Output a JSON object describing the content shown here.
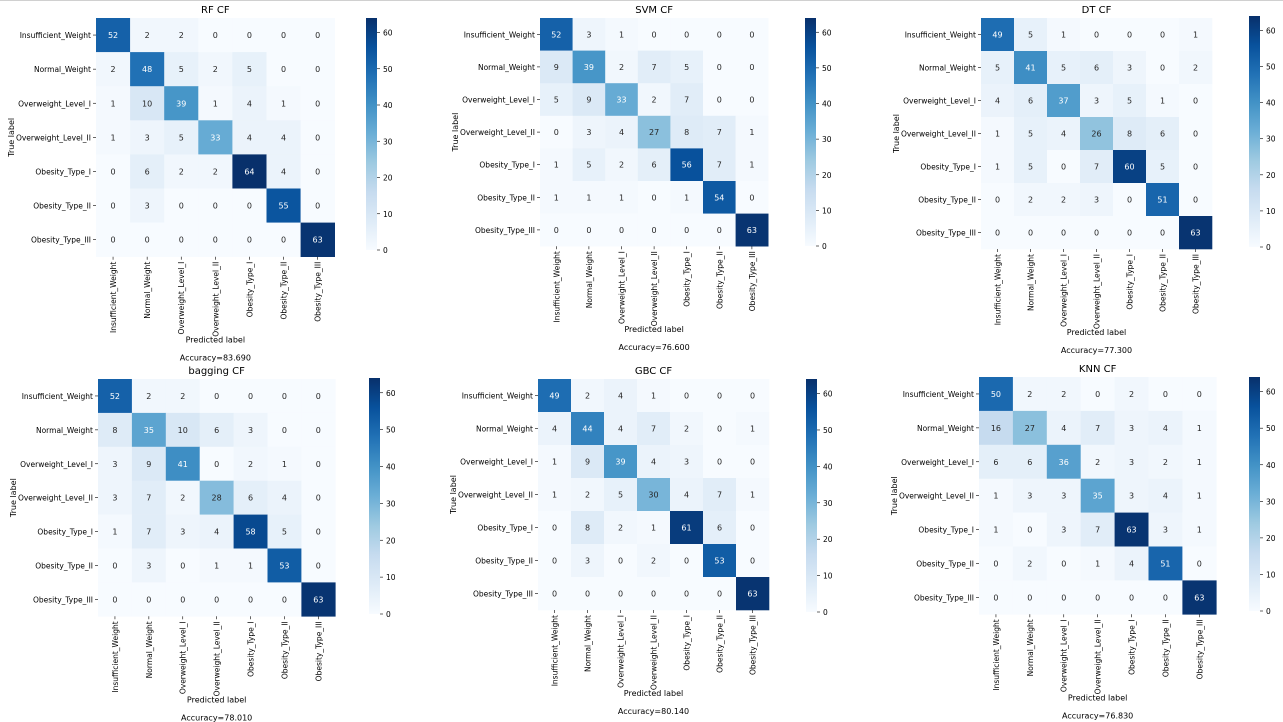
{
  "figure": {
    "labels": [
      "Insufficient_Weight",
      "Normal_Weight",
      "Overweight_Level_I",
      "Overweight_Level_II",
      "Obesity_Type_I",
      "Obesity_Type_II",
      "Obesity_Type_III"
    ],
    "xlabel": "Predicted label",
    "ylabel": "True label",
    "colorbar_ticks": [
      0,
      10,
      20,
      30,
      40,
      50,
      60
    ],
    "colorbar_range": [
      0,
      64
    ],
    "colors": {
      "low": "#f7fbff",
      "mid": "#6baed6",
      "high": "#08306b",
      "text_light": "#ffffff",
      "text_dark": "#262626"
    }
  },
  "chart_data": [
    {
      "type": "heatmap",
      "title": "RF CF",
      "accuracy": "Accuracy=83.690",
      "matrix": [
        [
          52,
          2,
          2,
          0,
          0,
          0,
          0
        ],
        [
          2,
          48,
          5,
          2,
          5,
          0,
          0
        ],
        [
          1,
          10,
          39,
          1,
          4,
          1,
          0
        ],
        [
          1,
          3,
          5,
          33,
          4,
          4,
          0
        ],
        [
          0,
          6,
          2,
          2,
          64,
          4,
          0
        ],
        [
          0,
          3,
          0,
          0,
          0,
          55,
          0
        ],
        [
          0,
          0,
          0,
          0,
          0,
          0,
          63
        ]
      ]
    },
    {
      "type": "heatmap",
      "title": "SVM CF",
      "accuracy": "Accuracy=76.600",
      "matrix": [
        [
          52,
          3,
          1,
          0,
          0,
          0,
          0
        ],
        [
          9,
          39,
          2,
          7,
          5,
          0,
          0
        ],
        [
          5,
          9,
          33,
          2,
          7,
          0,
          0
        ],
        [
          0,
          3,
          4,
          27,
          8,
          7,
          1
        ],
        [
          1,
          5,
          2,
          6,
          56,
          7,
          1
        ],
        [
          1,
          1,
          1,
          0,
          1,
          54,
          0
        ],
        [
          0,
          0,
          0,
          0,
          0,
          0,
          63
        ]
      ]
    },
    {
      "type": "heatmap",
      "title": "DT CF",
      "accuracy": "Accuracy=77.300",
      "matrix": [
        [
          49,
          5,
          1,
          0,
          0,
          0,
          1
        ],
        [
          5,
          41,
          5,
          6,
          3,
          0,
          2
        ],
        [
          4,
          6,
          37,
          3,
          5,
          1,
          0
        ],
        [
          1,
          5,
          4,
          26,
          8,
          6,
          0
        ],
        [
          1,
          5,
          0,
          7,
          60,
          5,
          0
        ],
        [
          0,
          2,
          2,
          3,
          0,
          51,
          0
        ],
        [
          0,
          0,
          0,
          0,
          0,
          0,
          63
        ]
      ]
    },
    {
      "type": "heatmap",
      "title": "bagging CF",
      "accuracy": "Accuracy=78.010",
      "matrix": [
        [
          52,
          2,
          2,
          0,
          0,
          0,
          0
        ],
        [
          8,
          35,
          10,
          6,
          3,
          0,
          0
        ],
        [
          3,
          9,
          41,
          0,
          2,
          1,
          0
        ],
        [
          3,
          7,
          2,
          28,
          6,
          4,
          0
        ],
        [
          1,
          7,
          3,
          4,
          58,
          5,
          0
        ],
        [
          0,
          3,
          0,
          1,
          1,
          53,
          0
        ],
        [
          0,
          0,
          0,
          0,
          0,
          0,
          63
        ]
      ]
    },
    {
      "type": "heatmap",
      "title": "GBC CF",
      "accuracy": "Accuracy=80.140",
      "matrix": [
        [
          49,
          2,
          4,
          1,
          0,
          0,
          0
        ],
        [
          4,
          44,
          4,
          7,
          2,
          0,
          1
        ],
        [
          1,
          9,
          39,
          4,
          3,
          0,
          0
        ],
        [
          1,
          2,
          5,
          30,
          4,
          7,
          1
        ],
        [
          0,
          8,
          2,
          1,
          61,
          6,
          0
        ],
        [
          0,
          3,
          0,
          2,
          0,
          53,
          0
        ],
        [
          0,
          0,
          0,
          0,
          0,
          0,
          63
        ]
      ]
    },
    {
      "type": "heatmap",
      "title": "KNN CF",
      "accuracy": "Accuracy=76.830",
      "matrix": [
        [
          50,
          2,
          2,
          0,
          2,
          0,
          0
        ],
        [
          16,
          27,
          4,
          7,
          3,
          4,
          1
        ],
        [
          6,
          6,
          36,
          2,
          3,
          2,
          1
        ],
        [
          1,
          3,
          3,
          35,
          3,
          4,
          1
        ],
        [
          1,
          0,
          3,
          7,
          63,
          3,
          1
        ],
        [
          0,
          2,
          0,
          1,
          4,
          51,
          0
        ],
        [
          0,
          0,
          0,
          0,
          0,
          0,
          63
        ]
      ]
    }
  ]
}
